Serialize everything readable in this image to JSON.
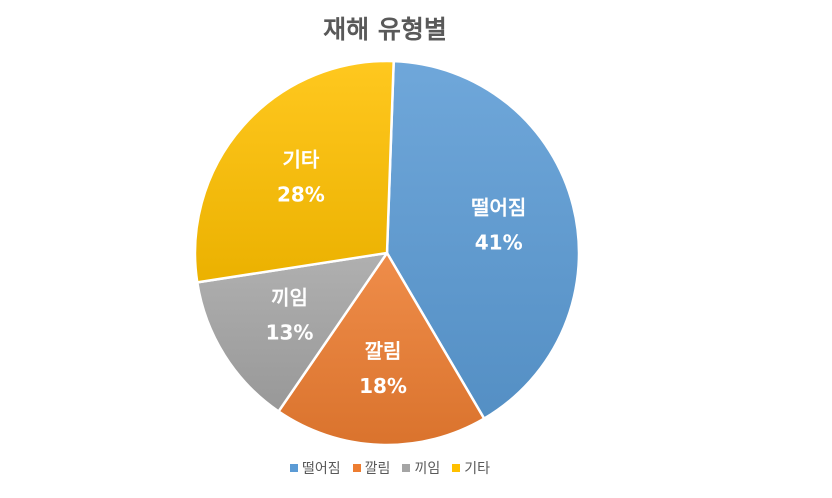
{
  "chart_data": {
    "type": "pie",
    "title": "재해 유형별",
    "categories": [
      "떨어짐",
      "깔림",
      "끼임",
      "기타"
    ],
    "values": [
      41,
      18,
      13,
      28
    ],
    "percent_labels": [
      "41%",
      "18%",
      "13%",
      "28%"
    ],
    "colors": [
      "#5B9BD5",
      "#ED7D31",
      "#A5A5A5",
      "#FFC000"
    ],
    "legend_position": "bottom",
    "start_angle_deg": 2
  }
}
